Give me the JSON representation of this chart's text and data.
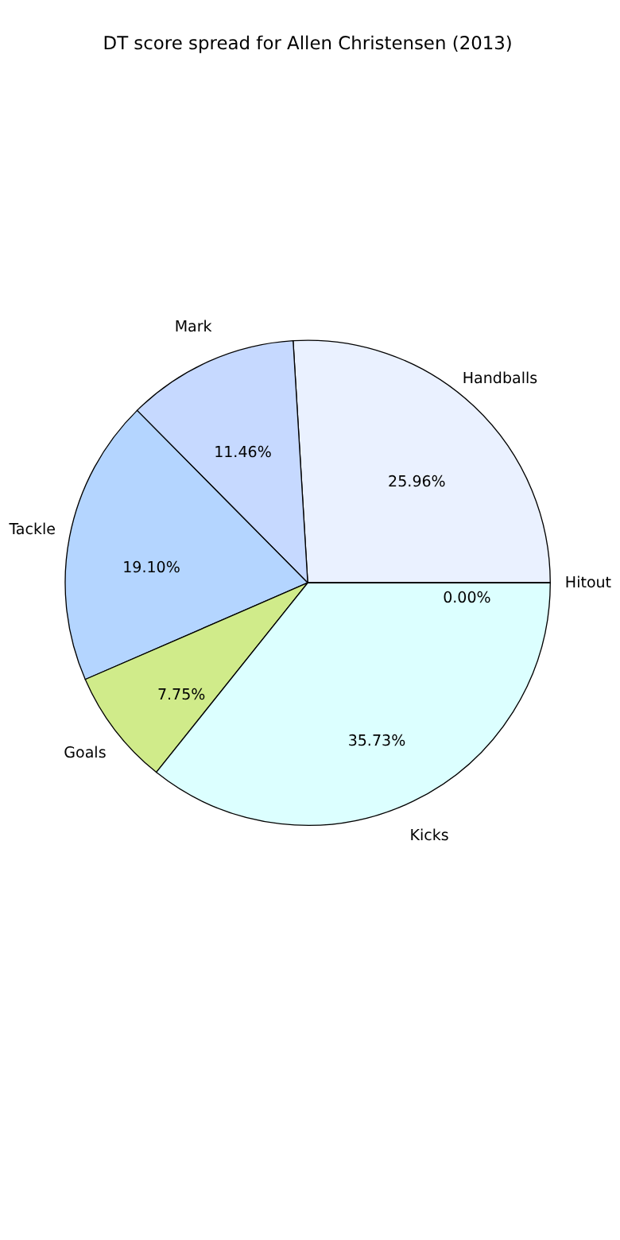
{
  "chart_data": {
    "type": "pie",
    "title": "DT score spread for Allen Christensen (2013)",
    "categories": [
      "Handballs",
      "Mark",
      "Tackle",
      "Goals",
      "Kicks",
      "Hitout"
    ],
    "values": [
      25.96,
      11.46,
      19.1,
      7.75,
      35.73,
      0.0
    ],
    "value_labels": [
      "25.96%",
      "11.46%",
      "19.10%",
      "7.75%",
      "35.73%",
      "0.00%"
    ],
    "colors": [
      "#eaf1ff",
      "#c6d9ff",
      "#b4d5ff",
      "#d0eb8a",
      "#dcffff",
      "#d3d3d3"
    ],
    "legend": false
  }
}
